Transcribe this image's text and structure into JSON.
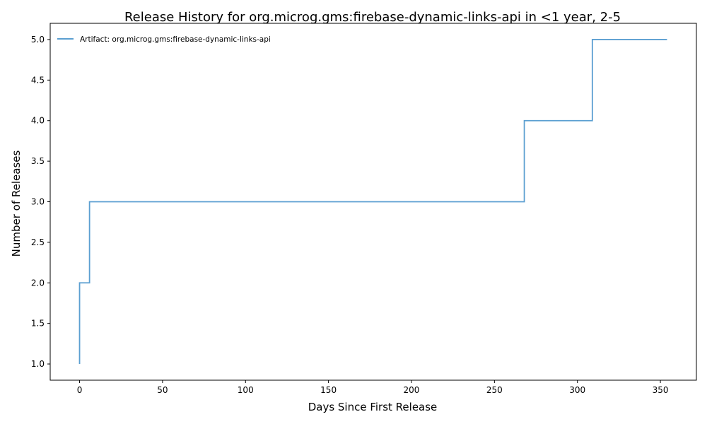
{
  "chart_data": {
    "type": "line",
    "drawstyle": "steps-post",
    "title": "Release History for org.microg.gms:firebase-dynamic-links-api in <1 year, 2-5",
    "xlabel": "Days Since First Release",
    "ylabel": "Number of Releases",
    "xlim": [
      -17.7,
      371.7
    ],
    "ylim": [
      0.8,
      5.2
    ],
    "xticks": [
      0,
      50,
      100,
      150,
      200,
      250,
      300,
      350
    ],
    "xtick_labels": [
      "0",
      "50",
      "100",
      "150",
      "200",
      "250",
      "300",
      "350"
    ],
    "yticks": [
      1.0,
      1.5,
      2.0,
      2.5,
      3.0,
      3.5,
      4.0,
      4.5,
      5.0
    ],
    "ytick_labels": [
      "1.0",
      "1.5",
      "2.0",
      "2.5",
      "3.0",
      "3.5",
      "4.0",
      "4.5",
      "5.0"
    ],
    "grid": false,
    "legend_position": "top-left",
    "series": [
      {
        "name": "Artifact: org.microg.gms:firebase-dynamic-links-api",
        "color": "#5b9fd1",
        "x": [
          0,
          0,
          6,
          268,
          309,
          354
        ],
        "y": [
          1,
          2,
          3,
          4,
          5,
          5
        ]
      }
    ]
  }
}
